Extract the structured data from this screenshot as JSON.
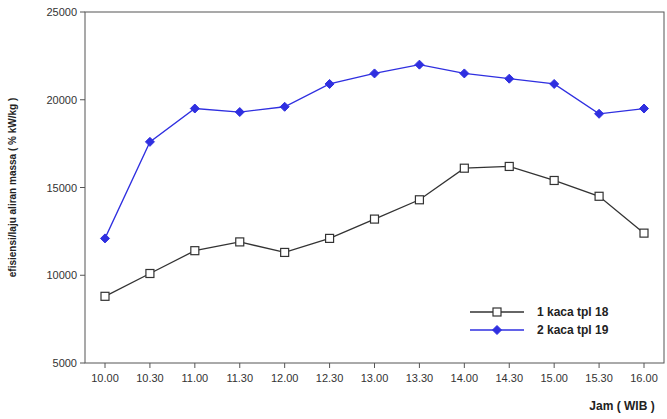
{
  "chart_data": {
    "type": "line",
    "x_label": "Jam ( WIB )",
    "y_label": "efisiensi/laju aliran massa ( % kW/kg )",
    "categories": [
      "10.00",
      "10.30",
      "11.00",
      "11.30",
      "12.00",
      "12.30",
      "13.00",
      "13.30",
      "14.00",
      "14.30",
      "15.00",
      "15.30",
      "16.00"
    ],
    "series": [
      {
        "name": "1 kaca tpl 18",
        "color": "#333333",
        "marker": "square",
        "values": [
          8800,
          10100,
          11400,
          11900,
          11300,
          12100,
          13200,
          14300,
          16100,
          16200,
          15400,
          14500,
          12400
        ]
      },
      {
        "name": "2 kaca tpl 19",
        "color": "#2f2fe0",
        "marker": "diamond",
        "values": [
          12100,
          17600,
          19500,
          19300,
          19600,
          20900,
          21500,
          22000,
          21500,
          21200,
          20900,
          19200,
          19500
        ]
      }
    ],
    "ylim": [
      5000,
      25000
    ],
    "yticks": [
      5000,
      10000,
      15000,
      20000,
      25000
    ],
    "grid": false,
    "legend": "lower right"
  }
}
